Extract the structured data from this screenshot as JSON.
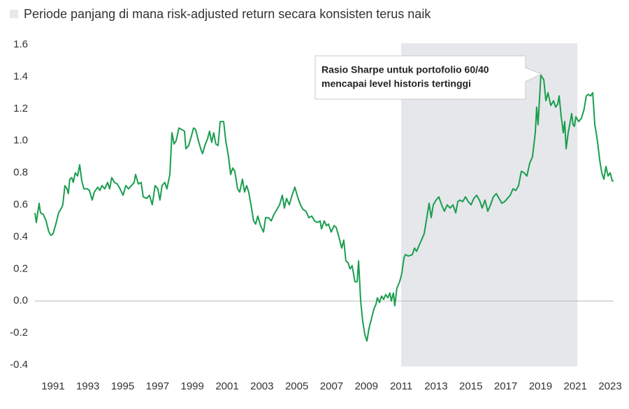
{
  "chart_data": {
    "type": "line",
    "shaded_region": {
      "label": "Periode panjang di mana risk-adjusted return secara konsisten terus naik",
      "color": "#e6e7eb",
      "x_range": [
        2011.0,
        2021.12
      ]
    },
    "annotation": {
      "lines": [
        "Rasio Sharpe untuk portofolio 60/40",
        "mencapai level historis tertinggi"
      ]
    },
    "x": [
      1989.96,
      1990.04,
      1990.2,
      1990.28,
      1990.44,
      1990.6,
      1990.76,
      1990.88,
      1991.0,
      1991.16,
      1991.32,
      1991.48,
      1991.56,
      1991.68,
      1991.8,
      1991.88,
      1991.96,
      1992.08,
      1992.16,
      1992.28,
      1992.41,
      1992.53,
      1992.65,
      1992.77,
      1992.97,
      1993.09,
      1993.25,
      1993.37,
      1993.57,
      1993.69,
      1993.81,
      1993.97,
      1994.13,
      1994.25,
      1994.37,
      1994.53,
      1994.69,
      1994.85,
      1995.02,
      1995.18,
      1995.34,
      1995.5,
      1995.66,
      1995.74,
      1995.9,
      1996.06,
      1996.18,
      1996.38,
      1996.54,
      1996.7,
      1996.86,
      1997.02,
      1997.14,
      1997.26,
      1997.42,
      1997.54,
      1997.71,
      1997.83,
      1997.95,
      1998.07,
      1998.23,
      1998.39,
      1998.55,
      1998.63,
      1998.79,
      1998.95,
      1999.07,
      1999.19,
      1999.35,
      1999.51,
      1999.59,
      1999.75,
      1999.87,
      1999.99,
      2000.11,
      2000.23,
      2000.35,
      2000.48,
      2000.6,
      2000.8,
      2000.92,
      2001.08,
      2001.2,
      2001.32,
      2001.44,
      2001.6,
      2001.72,
      2001.88,
      2002.0,
      2002.12,
      2002.24,
      2002.4,
      2002.52,
      2002.64,
      2002.76,
      2002.92,
      2003.09,
      2003.21,
      2003.37,
      2003.53,
      2003.69,
      2003.85,
      2004.01,
      2004.17,
      2004.29,
      2004.41,
      2004.57,
      2004.73,
      2004.89,
      2005.05,
      2005.21,
      2005.37,
      2005.53,
      2005.69,
      2005.86,
      2006.02,
      2006.18,
      2006.34,
      2006.42,
      2006.58,
      2006.7,
      2006.82,
      2006.98,
      2007.14,
      2007.26,
      2007.42,
      2007.58,
      2007.7,
      2007.82,
      2007.94,
      2008.06,
      2008.18,
      2008.34,
      2008.47,
      2008.55,
      2008.67,
      2008.79,
      2008.91,
      2009.03,
      2009.15,
      2009.27,
      2009.43,
      2009.55,
      2009.63,
      2009.75,
      2009.87,
      2009.99,
      2010.11,
      2010.23,
      2010.35,
      2010.43,
      2010.55,
      2010.63,
      2010.75,
      2010.91,
      2011.03,
      2011.16,
      2011.24,
      2011.4,
      2011.64,
      2011.76,
      2011.88,
      2012.04,
      2012.2,
      2012.32,
      2012.44,
      2012.6,
      2012.72,
      2012.84,
      2013.0,
      2013.16,
      2013.32,
      2013.48,
      2013.64,
      2013.81,
      2013.97,
      2014.13,
      2014.25,
      2014.37,
      2014.53,
      2014.69,
      2014.85,
      2015.01,
      2015.17,
      2015.33,
      2015.49,
      2015.65,
      2015.81,
      2015.97,
      2016.13,
      2016.29,
      2016.46,
      2016.62,
      2016.78,
      2016.94,
      2017.1,
      2017.26,
      2017.42,
      2017.58,
      2017.74,
      2017.9,
      2018.06,
      2018.22,
      2018.38,
      2018.54,
      2018.7,
      2018.78,
      2018.86,
      2019.02,
      2019.19,
      2019.31,
      2019.43,
      2019.59,
      2019.75,
      2019.87,
      2019.99,
      2020.07,
      2020.19,
      2020.31,
      2020.39,
      2020.47,
      2020.59,
      2020.71,
      2020.79,
      2020.87,
      2020.95,
      2021.03,
      2021.19,
      2021.35,
      2021.51,
      2021.63,
      2021.75,
      2021.88,
      2022.0,
      2022.12,
      2022.2,
      2022.28,
      2022.4,
      2022.52,
      2022.64,
      2022.76,
      2022.88,
      2023.0,
      2023.12,
      2023.2
    ],
    "series": [
      {
        "color": "#1a9e4f",
        "values": [
          0.55,
          0.49,
          0.61,
          0.55,
          0.54,
          0.5,
          0.43,
          0.41,
          0.42,
          0.48,
          0.55,
          0.58,
          0.6,
          0.72,
          0.7,
          0.67,
          0.76,
          0.77,
          0.74,
          0.8,
          0.78,
          0.85,
          0.75,
          0.7,
          0.7,
          0.69,
          0.63,
          0.68,
          0.71,
          0.69,
          0.72,
          0.7,
          0.74,
          0.7,
          0.77,
          0.74,
          0.73,
          0.7,
          0.66,
          0.72,
          0.7,
          0.72,
          0.74,
          0.79,
          0.73,
          0.74,
          0.65,
          0.64,
          0.66,
          0.6,
          0.72,
          0.7,
          0.63,
          0.72,
          0.74,
          0.7,
          0.79,
          1.05,
          0.98,
          1.0,
          1.08,
          1.07,
          1.06,
          0.95,
          0.97,
          1.03,
          1.08,
          1.07,
          1.0,
          0.94,
          0.92,
          0.98,
          1.01,
          1.06,
          0.99,
          1.05,
          0.98,
          0.97,
          1.12,
          1.12,
          1.0,
          0.9,
          0.79,
          0.83,
          0.81,
          0.7,
          0.68,
          0.76,
          0.68,
          0.72,
          0.68,
          0.58,
          0.5,
          0.48,
          0.53,
          0.47,
          0.43,
          0.52,
          0.52,
          0.5,
          0.54,
          0.57,
          0.6,
          0.66,
          0.58,
          0.64,
          0.6,
          0.66,
          0.71,
          0.65,
          0.6,
          0.57,
          0.56,
          0.52,
          0.53,
          0.5,
          0.49,
          0.5,
          0.45,
          0.5,
          0.47,
          0.48,
          0.43,
          0.47,
          0.46,
          0.4,
          0.33,
          0.38,
          0.25,
          0.24,
          0.2,
          0.22,
          0.12,
          0.12,
          0.25,
          0.0,
          -0.13,
          -0.21,
          -0.25,
          -0.17,
          -0.12,
          -0.05,
          -0.02,
          0.02,
          -0.01,
          0.03,
          0.01,
          0.04,
          0.02,
          0.05,
          0.0,
          0.05,
          -0.03,
          0.08,
          0.12,
          0.17,
          0.27,
          0.29,
          0.28,
          0.29,
          0.33,
          0.31,
          0.35,
          0.39,
          0.42,
          0.5,
          0.61,
          0.52,
          0.6,
          0.63,
          0.65,
          0.6,
          0.56,
          0.6,
          0.58,
          0.6,
          0.55,
          0.62,
          0.63,
          0.62,
          0.65,
          0.62,
          0.6,
          0.64,
          0.66,
          0.63,
          0.58,
          0.63,
          0.56,
          0.6,
          0.65,
          0.67,
          0.64,
          0.61,
          0.62,
          0.64,
          0.66,
          0.7,
          0.69,
          0.72,
          0.81,
          0.8,
          0.78,
          0.86,
          0.9,
          1.05,
          1.21,
          1.1,
          1.41,
          1.38,
          1.25,
          1.3,
          1.22,
          1.25,
          1.21,
          1.23,
          1.28,
          1.15,
          1.05,
          1.12,
          0.95,
          1.05,
          1.12,
          1.17,
          1.1,
          1.09,
          1.15,
          1.12,
          1.14,
          1.2,
          1.28,
          1.29,
          1.28,
          1.3,
          1.1,
          1.05,
          0.99,
          0.88,
          0.8,
          0.76,
          0.84,
          0.78,
          0.8,
          0.75,
          0.75
        ]
      }
    ],
    "xlim": [
      1989.96,
      2023.2
    ],
    "xticks": [
      1991,
      1993,
      1995,
      1997,
      1999,
      2001,
      2003,
      2005,
      2007,
      2009,
      2011,
      2013,
      2015,
      2017,
      2019,
      2021,
      2023
    ],
    "ylim": [
      -0.4,
      1.6
    ],
    "yticks": [
      -0.4,
      -0.2,
      {
        "value": 0,
        "label": "0.0"
      },
      0.2,
      0.4,
      0.6,
      0.8,
      {
        "value": 1,
        "label": "1.0"
      },
      1.2,
      1.4,
      1.6
    ],
    "reference_line": {
      "y": 0,
      "color": "#b8b8b8"
    }
  }
}
